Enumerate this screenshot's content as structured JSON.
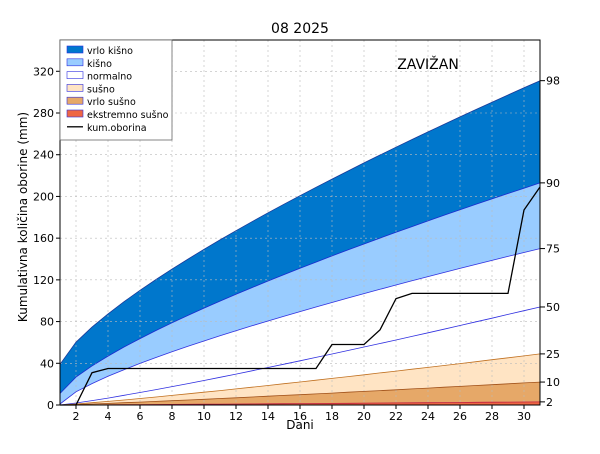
{
  "chart_data": {
    "type": "area",
    "title": "08 2025",
    "station": "ZAVIŽAN",
    "xlabel": "Dani",
    "ylabel": "Kumulativna količina oborine (mm)",
    "xlim": [
      1,
      31
    ],
    "ylim": [
      0,
      350
    ],
    "x_ticks": [
      2,
      4,
      6,
      8,
      10,
      12,
      14,
      16,
      18,
      20,
      22,
      24,
      26,
      28,
      30
    ],
    "y_ticks": [
      0,
      40,
      80,
      120,
      160,
      200,
      240,
      280,
      320
    ],
    "grid": true,
    "legend_position": "top-left",
    "percentiles": [
      {
        "label": "98",
        "values_day1_day31": [
          39,
          311
        ]
      },
      {
        "label": "90",
        "values_day1_day31": [
          11,
          213
        ]
      },
      {
        "label": "75",
        "values_day1_day31": [
          1,
          150
        ]
      },
      {
        "label": "50",
        "values_day1_day31": [
          0,
          94
        ]
      },
      {
        "label": "25",
        "values_day1_day31": [
          0,
          49
        ]
      },
      {
        "label": "10",
        "values_day1_day31": [
          0,
          22
        ]
      },
      {
        "label": "2",
        "values_day1_day31": [
          0,
          3
        ]
      }
    ],
    "series": [
      {
        "name": "vrlo kišno",
        "color": "#0077cc"
      },
      {
        "name": "kišno",
        "color": "#99ccff"
      },
      {
        "name": "normalno",
        "color": "#ffffff"
      },
      {
        "name": "sušno",
        "color": "#ffe4c4"
      },
      {
        "name": "vrlo sušno",
        "color": "#e6a868"
      },
      {
        "name": "ekstremno sušno",
        "color": "#ee6644"
      },
      {
        "name": "kum.oborina",
        "color": "#000000"
      }
    ],
    "kum_oborina": {
      "x": [
        1,
        2,
        3,
        4,
        5,
        6,
        7,
        8,
        9,
        10,
        11,
        12,
        13,
        14,
        15,
        16,
        17,
        18,
        19,
        20,
        21,
        22,
        23,
        24,
        25,
        26,
        27,
        28,
        29,
        30,
        31
      ],
      "y": [
        0,
        0,
        31,
        35,
        35,
        35,
        35,
        35,
        35,
        35,
        35,
        35,
        35,
        35,
        35,
        35,
        35,
        58,
        58,
        58,
        72,
        102,
        107,
        107,
        107,
        107,
        107,
        107,
        107,
        187,
        209
      ]
    }
  }
}
